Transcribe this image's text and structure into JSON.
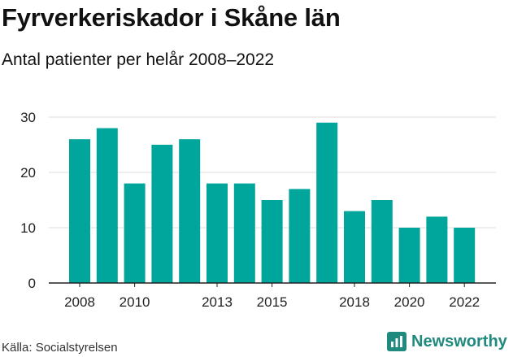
{
  "header": {
    "title": "Fyrverkeriskador i Skåne län",
    "subtitle": "Antal patienter per helår 2008–2022"
  },
  "footer": {
    "source": "Källa: Socialstyrelsen",
    "brand": "Newsworthy",
    "brand_icon": "newsworthy-logo-icon"
  },
  "colors": {
    "bar": "#00a59c",
    "grid": "#dddddd",
    "brand": "#1f8a7d"
  },
  "chart_data": {
    "type": "bar",
    "title": "Fyrverkeriskador i Skåne län",
    "subtitle": "Antal patienter per helår 2008–2022",
    "xlabel": "",
    "ylabel": "",
    "categories": [
      "2008",
      "2009",
      "2010",
      "2011",
      "2012",
      "2013",
      "2014",
      "2015",
      "2016",
      "2017",
      "2018",
      "2019",
      "2020",
      "2021",
      "2022"
    ],
    "values": [
      26,
      28,
      18,
      25,
      26,
      18,
      18,
      15,
      17,
      29,
      13,
      15,
      10,
      12,
      10
    ],
    "x_tick_labels": [
      "2008",
      "2010",
      "2013",
      "2015",
      "2018",
      "2020",
      "2022"
    ],
    "y_ticks": [
      0,
      10,
      20,
      30
    ],
    "ylim": [
      0,
      30
    ],
    "grid": true,
    "legend": "none"
  }
}
